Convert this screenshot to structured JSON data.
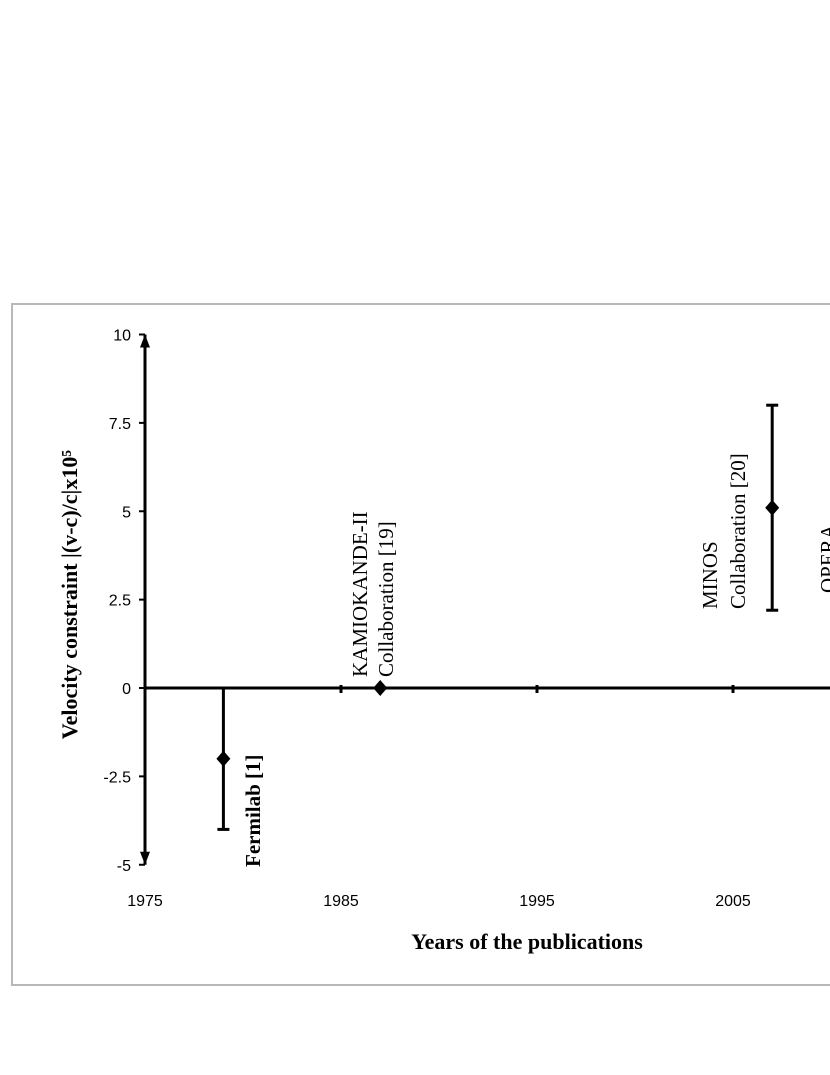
{
  "chart_data": {
    "type": "scatter",
    "title": "",
    "xlabel": "Years of the publications",
    "ylabel": "Velocity constraint |(v-c)/c|x10⁵",
    "xlim": [
      1975,
      2015
    ],
    "ylim": [
      -5,
      10
    ],
    "x_ticks": [
      "1975",
      "1985",
      "1995",
      "2005"
    ],
    "y_ticks": [
      "10",
      "7.5",
      "5",
      "2.5",
      "0",
      "-2.5",
      "-5"
    ],
    "grid": false,
    "legend": "none",
    "points": [
      {
        "x": 1979,
        "y": -2,
        "err_low": -4,
        "err_high": 0,
        "label": "Fermilab [1]"
      },
      {
        "x": 1987,
        "y": 0,
        "err_low": null,
        "err_high": null,
        "label_lines": [
          "KAMIOKANDE-II",
          "Collaboration [19]"
        ]
      },
      {
        "x": 2007,
        "y": 5.1,
        "err_low": 2.2,
        "err_high": 8,
        "label_lines": [
          "MINOS",
          "Collaboration [20]"
        ]
      }
    ],
    "partial_label": "OPERA"
  },
  "colors": {
    "axis": "#000000",
    "frame": "#b8b8b8"
  }
}
